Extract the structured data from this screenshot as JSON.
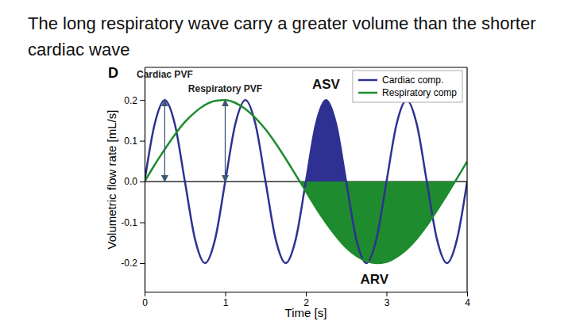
{
  "chart_data": {
    "type": "line",
    "title": "The long respiratory wave carry a greater volume than the shorter cardiac wave",
    "panel_label": "D",
    "x_label": "Time [s]",
    "y_label": "Volumetric flow rate [mL/s]",
    "x": [
      0,
      0.125,
      0.25,
      0.375,
      0.5,
      0.625,
      0.75,
      0.875,
      1,
      1.125,
      1.25,
      1.375,
      1.5,
      1.625,
      1.75,
      1.875,
      2,
      2.125,
      2.25,
      2.375,
      2.5,
      2.625,
      2.75,
      2.875,
      3,
      3.125,
      3.25,
      3.375,
      3.5,
      3.625,
      3.75,
      3.875,
      4
    ],
    "series": [
      {
        "name": "Cardiac comp.",
        "color": "#2e3192",
        "values": [
          0,
          0.141,
          0.2,
          0.141,
          0,
          -0.141,
          -0.2,
          -0.141,
          0,
          0.141,
          0.2,
          0.141,
          0,
          -0.141,
          -0.2,
          -0.141,
          0,
          0.141,
          0.2,
          0.141,
          0,
          -0.141,
          -0.2,
          -0.141,
          0,
          0.141,
          0.2,
          0.141,
          0,
          -0.141,
          -0.2,
          -0.141,
          0
        ]
      },
      {
        "name": "Respiratory comp",
        "color": "#1e8c2e",
        "values": [
          0,
          0.041,
          0.079,
          0.115,
          0.146,
          0.17,
          0.188,
          0.198,
          0.2,
          0.193,
          0.178,
          0.156,
          0.128,
          0.094,
          0.056,
          0.016,
          -0.024,
          -0.064,
          -0.101,
          -0.134,
          -0.162,
          -0.182,
          -0.195,
          -0.2,
          -0.197,
          -0.185,
          -0.166,
          -0.14,
          -0.108,
          -0.071,
          -0.032,
          0.008,
          0.049
        ]
      }
    ],
    "annotations": [
      {
        "type": "arrow",
        "text": "Cardiac PVF",
        "series": "Cardiac comp.",
        "x": 0.25,
        "y": 0.2
      },
      {
        "type": "arrow",
        "text": "Respiratory PVF",
        "series": "Respiratory comp",
        "x": 1,
        "y": 0.2
      },
      {
        "type": "fill",
        "text": "ASV",
        "series": "Cardiac comp.",
        "x": 2.25,
        "y": 0.2
      },
      {
        "type": "fill",
        "text": "ARV",
        "series": "Respiratory comp",
        "x": 2.85,
        "y": -0.2
      }
    ],
    "xlim": [
      0,
      4
    ],
    "ylim": [
      -0.27,
      0.28
    ],
    "xticks": [
      0,
      1,
      2,
      3,
      4
    ],
    "yticks": [
      -0.2,
      -0.1,
      {
        "value": 0,
        "label": "0.0"
      },
      0.1,
      0.2
    ],
    "grid": false,
    "legend": "upper right"
  }
}
